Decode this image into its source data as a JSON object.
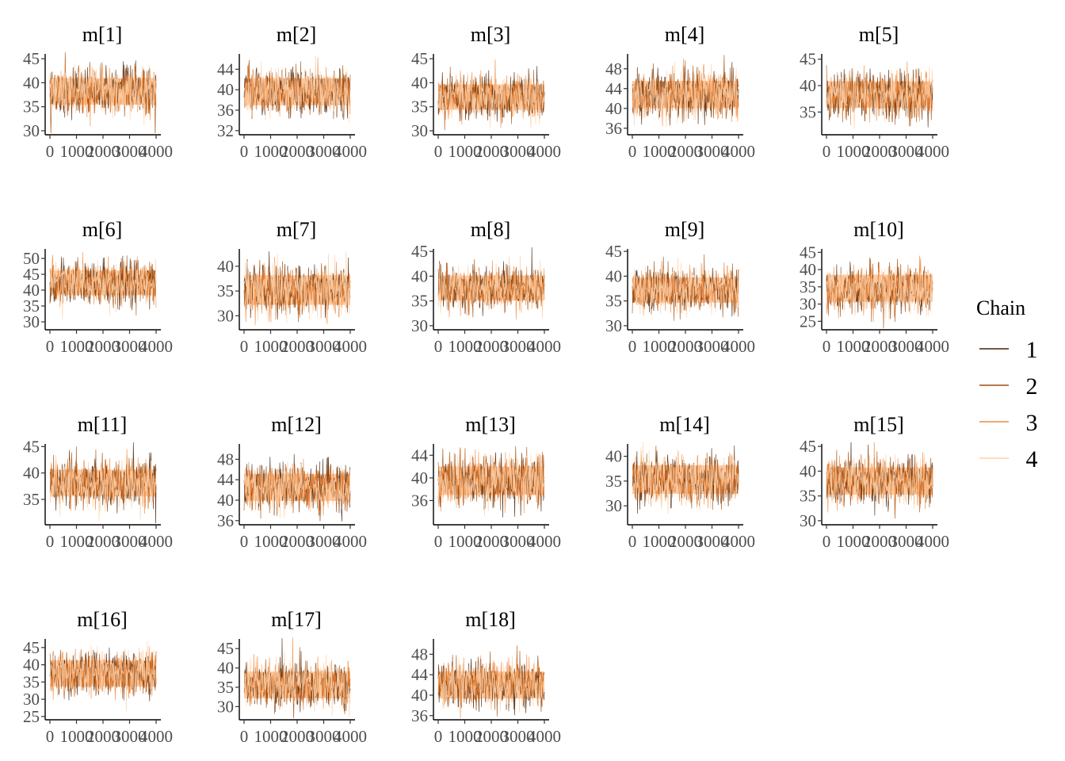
{
  "chart_data": {
    "type": "line",
    "description_type": "trace-plot-facets",
    "x_ticks": [
      0,
      1000,
      2000,
      3000,
      4000
    ],
    "x_tick_labels": [
      "0",
      "1000",
      "2000",
      "3000",
      "4000"
    ],
    "xlim": [
      0,
      4000
    ],
    "legend": {
      "title": "Chain",
      "placement": "right",
      "entries": [
        {
          "label": "1",
          "color": "#4a2106"
        },
        {
          "label": "2",
          "color": "#a34d0b"
        },
        {
          "label": "3",
          "color": "#f08a3e"
        },
        {
          "label": "4",
          "color": "#fdd0a8"
        }
      ]
    },
    "band_color": "#fdc79e",
    "panels": [
      {
        "title": "m[1]",
        "ylim": [
          29.5,
          46
        ],
        "yticks": [
          30,
          35,
          40,
          45
        ],
        "center": 38.2,
        "sd": 2.4
      },
      {
        "title": "m[2]",
        "ylim": [
          31.5,
          47
        ],
        "yticks": [
          32,
          36,
          40,
          44
        ],
        "center": 39.6,
        "sd": 2.3
      },
      {
        "title": "m[3]",
        "ylim": [
          29.5,
          46
        ],
        "yticks": [
          30,
          35,
          40,
          45
        ],
        "center": 37.0,
        "sd": 2.3
      },
      {
        "title": "m[4]",
        "ylim": [
          35,
          51
        ],
        "yticks": [
          36,
          40,
          44,
          48
        ],
        "center": 42.8,
        "sd": 2.4
      },
      {
        "title": "m[5]",
        "ylim": [
          31,
          46
        ],
        "yticks": [
          35,
          40,
          45
        ],
        "center": 38.3,
        "sd": 2.2
      },
      {
        "title": "m[6]",
        "ylim": [
          28,
          53
        ],
        "yticks": [
          30,
          35,
          40,
          45,
          50
        ],
        "center": 42.3,
        "sd": 3.4
      },
      {
        "title": "m[7]",
        "ylim": [
          27.5,
          43.5
        ],
        "yticks": [
          30,
          35,
          40
        ],
        "center": 35.2,
        "sd": 2.6
      },
      {
        "title": "m[8]",
        "ylim": [
          29.5,
          45.5
        ],
        "yticks": [
          30,
          35,
          40,
          45
        ],
        "center": 37.6,
        "sd": 2.2
      },
      {
        "title": "m[9]",
        "ylim": [
          29.5,
          45.5
        ],
        "yticks": [
          30,
          35,
          40,
          45
        ],
        "center": 37.2,
        "sd": 2.2
      },
      {
        "title": "m[10]",
        "ylim": [
          23,
          46
        ],
        "yticks": [
          25,
          30,
          35,
          40,
          45
        ],
        "center": 34.6,
        "sd": 3.4
      },
      {
        "title": "m[11]",
        "ylim": [
          30.5,
          45.5
        ],
        "yticks": [
          35,
          40,
          45
        ],
        "center": 38.1,
        "sd": 2.2
      },
      {
        "title": "m[12]",
        "ylim": [
          35.5,
          51
        ],
        "yticks": [
          36,
          40,
          44,
          48
        ],
        "center": 42.5,
        "sd": 2.3
      },
      {
        "title": "m[13]",
        "ylim": [
          32,
          46
        ],
        "yticks": [
          36,
          40,
          44
        ],
        "center": 39.5,
        "sd": 2.2
      },
      {
        "title": "m[14]",
        "ylim": [
          26.5,
          42.5
        ],
        "yticks": [
          30,
          35,
          40
        ],
        "center": 35.3,
        "sd": 2.5
      },
      {
        "title": "m[15]",
        "ylim": [
          29.5,
          45.5
        ],
        "yticks": [
          30,
          35,
          40,
          45
        ],
        "center": 38.0,
        "sd": 2.4
      },
      {
        "title": "m[16]",
        "ylim": [
          24.5,
          47.5
        ],
        "yticks": [
          25,
          30,
          35,
          40,
          45
        ],
        "center": 37.5,
        "sd": 3.3
      },
      {
        "title": "m[17]",
        "ylim": [
          27,
          47.5
        ],
        "yticks": [
          30,
          35,
          40,
          45
        ],
        "center": 35.6,
        "sd": 3.0
      },
      {
        "title": "m[18]",
        "ylim": [
          35.5,
          51
        ],
        "yticks": [
          36,
          40,
          44,
          48
        ],
        "center": 42.0,
        "sd": 2.3
      }
    ]
  }
}
